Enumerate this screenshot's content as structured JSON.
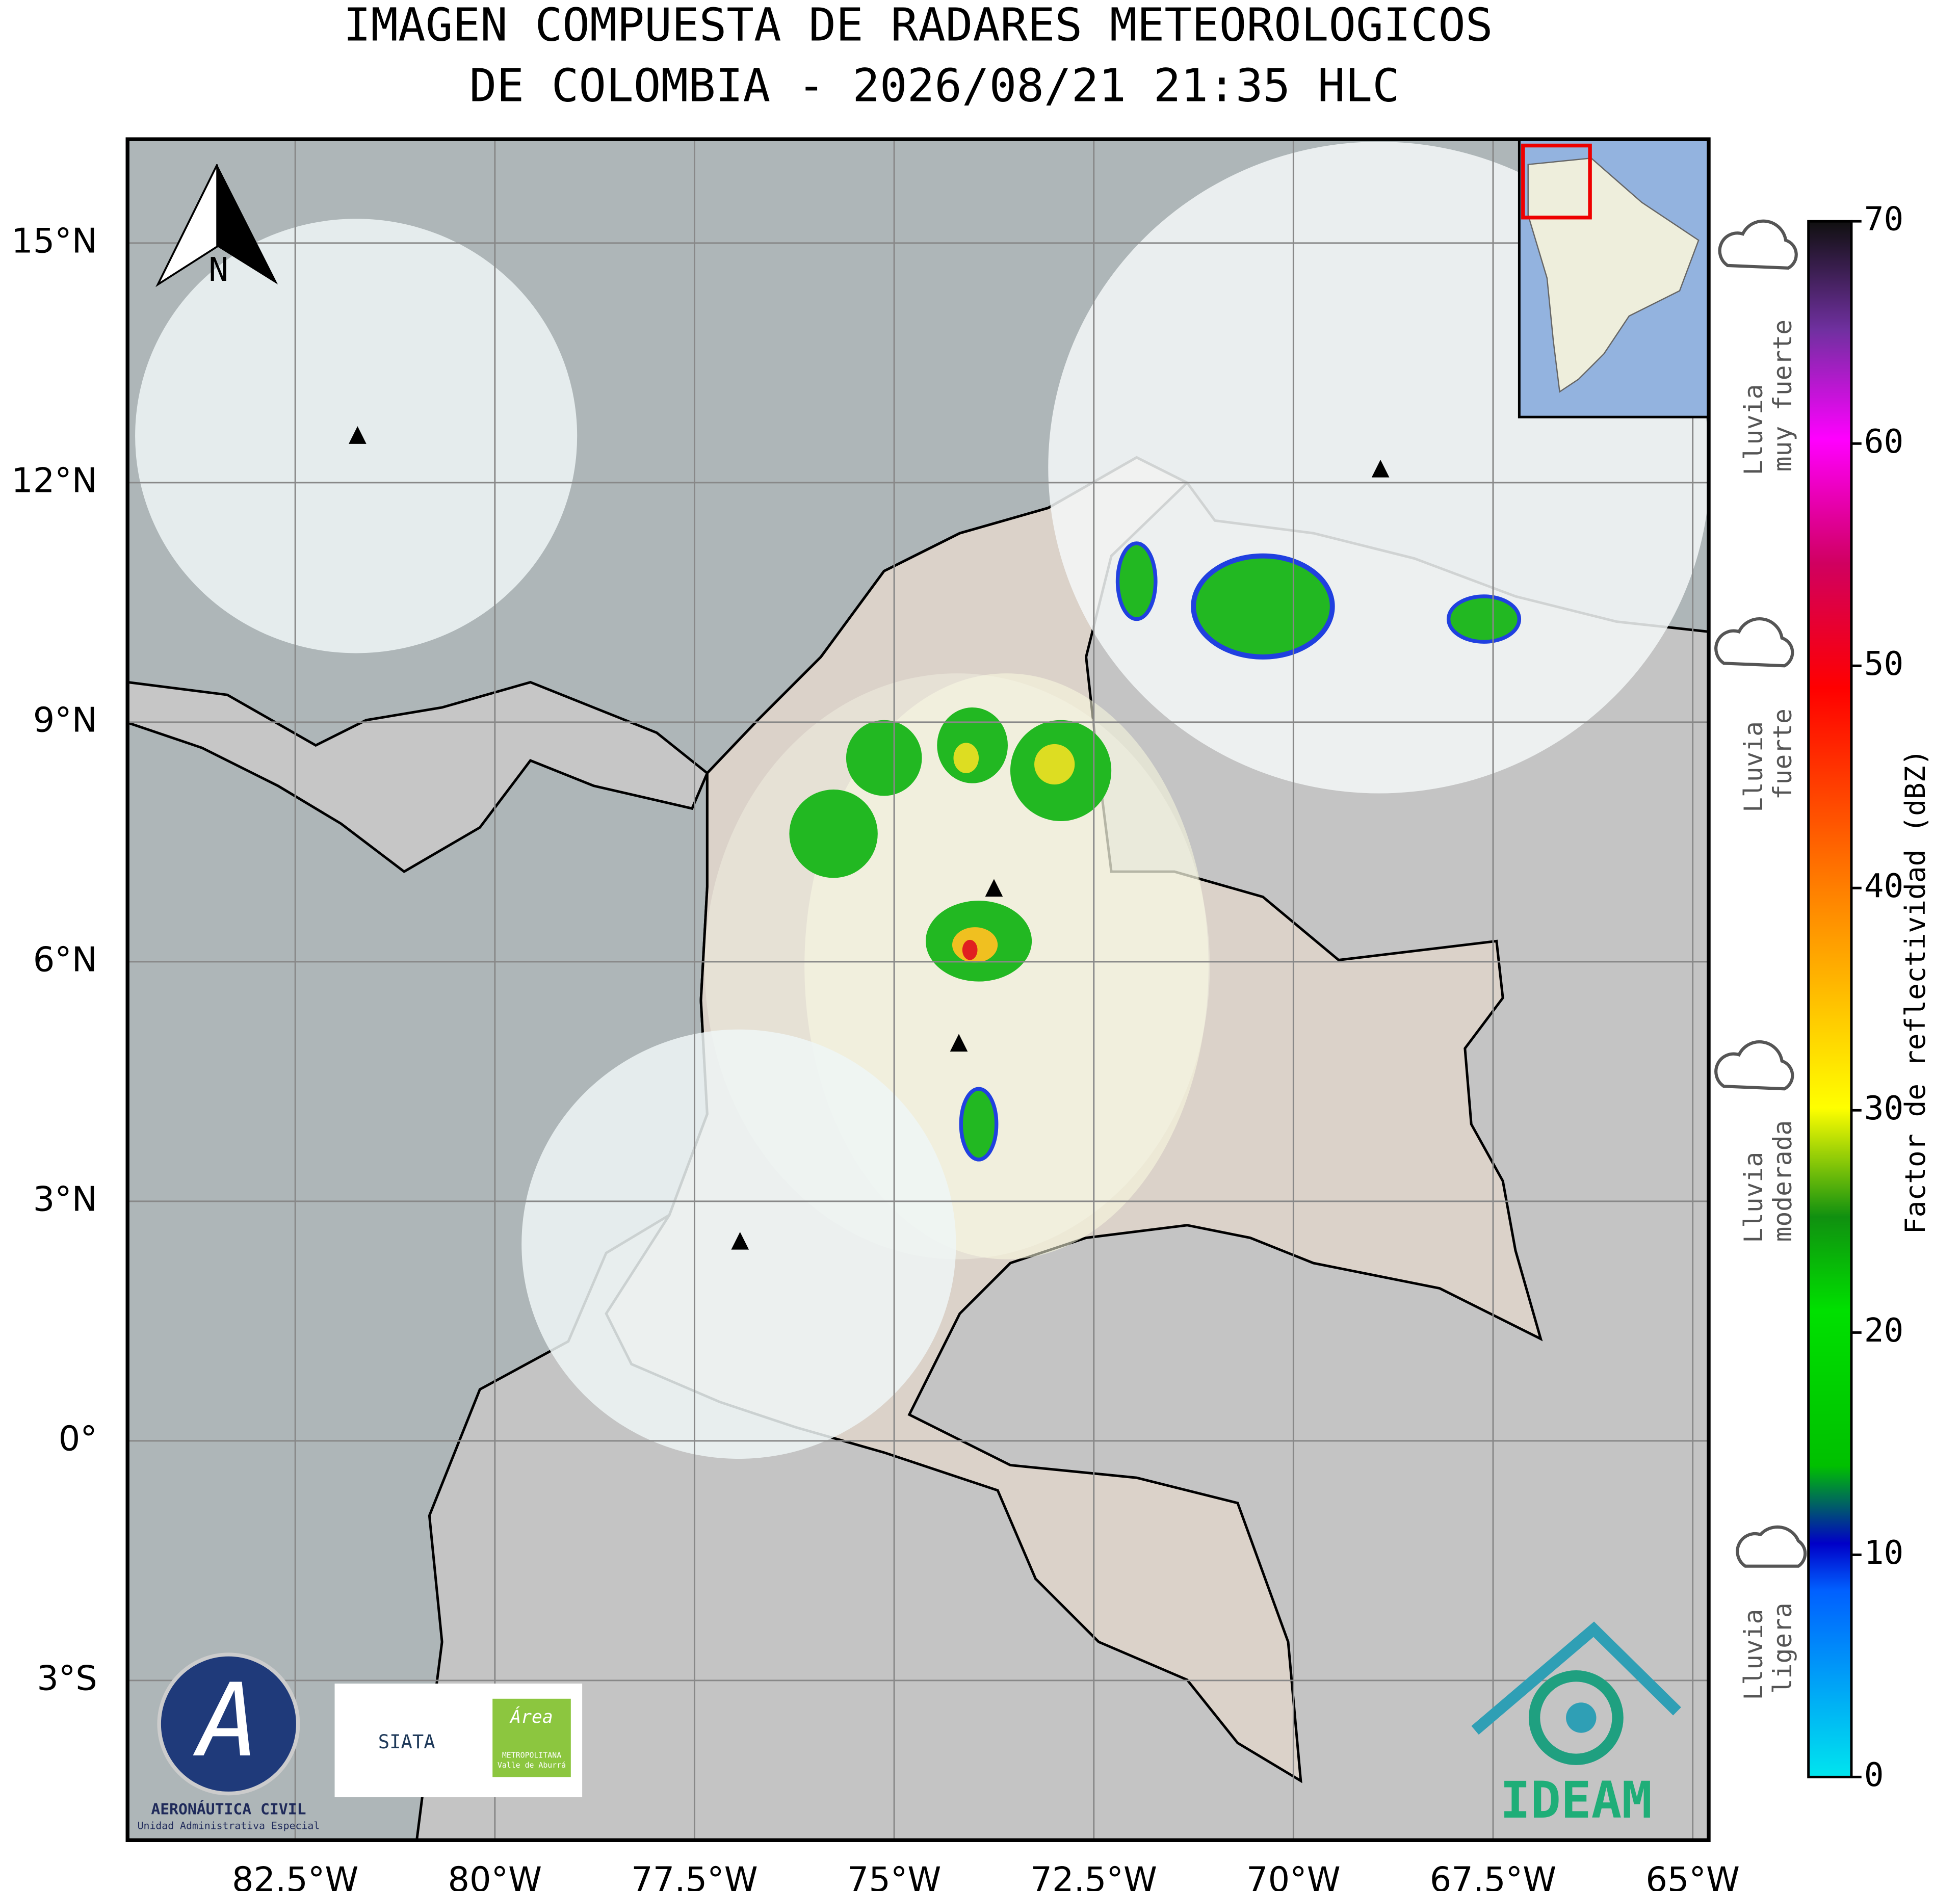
{
  "title": [
    "IMAGEN COMPUESTA DE RADARES METEOROLOGICOS",
    "DE COLOMBIA - 2026/08/21 21:35 HLC"
  ],
  "map": {
    "xlim": [
      -84.6,
      -64.8
    ],
    "ylim": [
      -5.0,
      16.3
    ],
    "xticks": [
      {
        "value": -82.5,
        "label": "82.5°W"
      },
      {
        "value": -80,
        "label": "80°W"
      },
      {
        "value": -77.5,
        "label": "77.5°W"
      },
      {
        "value": -75,
        "label": "75°W"
      },
      {
        "value": -72.5,
        "label": "72.5°W"
      },
      {
        "value": -70,
        "label": "70°W"
      },
      {
        "value": -67.5,
        "label": "67.5°W"
      },
      {
        "value": -65,
        "label": "65°W"
      }
    ],
    "yticks": [
      {
        "value": 15,
        "label": "15°N"
      },
      {
        "value": 12,
        "label": "12°N"
      },
      {
        "value": 9,
        "label": "9°N"
      },
      {
        "value": 6,
        "label": "6°N"
      },
      {
        "value": 3,
        "label": "3°N"
      },
      {
        "value": 0,
        "label": "0°"
      },
      {
        "value": -3,
        "label": "3°S"
      }
    ],
    "grid": true,
    "radar_sites": [
      {
        "lon": -81.72,
        "lat": 12.58
      },
      {
        "lon": -68.91,
        "lat": 12.16
      },
      {
        "lon": -73.75,
        "lat": 6.91
      },
      {
        "lon": -74.19,
        "lat": 4.97
      },
      {
        "lon": -76.93,
        "lat": 2.49
      }
    ],
    "north_label": "N"
  },
  "colorbar": {
    "label": "Factor de reflectividad (dBZ)",
    "lim": [
      0,
      70
    ],
    "ticks": [
      0,
      10,
      20,
      30,
      40,
      50,
      60,
      70
    ]
  },
  "rain_levels": [
    [
      "Lluvia",
      "muy fuerte"
    ],
    [
      "Lluvia",
      "fuerte"
    ],
    [
      "Lluvia",
      "moderada"
    ],
    [
      "Lluvia",
      "ligera"
    ]
  ],
  "logos": {
    "aerocivil": [
      "AERONÁUTICA CIVIL",
      "Unidad Administrativa Especial"
    ],
    "siata": "SIATA",
    "area": [
      "Área",
      "METROPOLITANA",
      "Valle de Aburrá"
    ],
    "ideam": "IDEAM"
  }
}
